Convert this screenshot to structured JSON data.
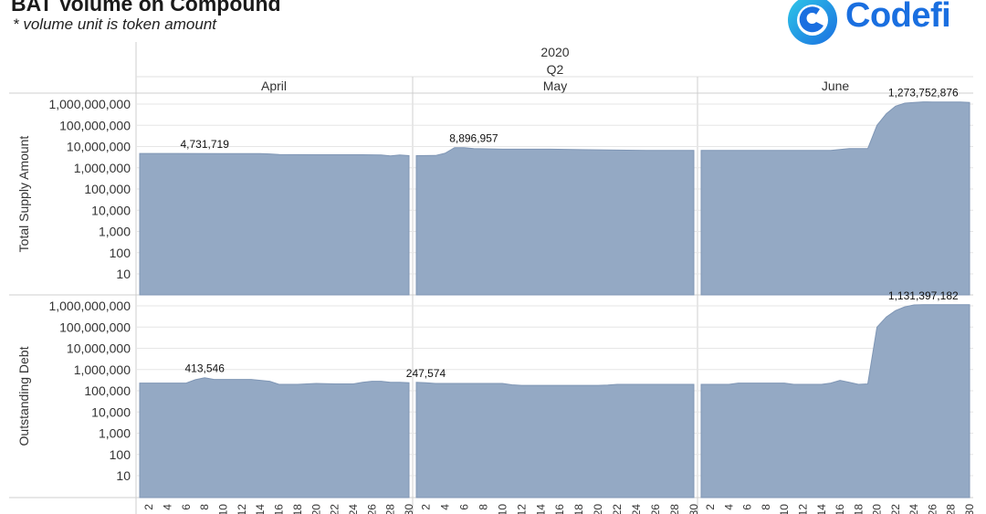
{
  "header": {
    "title": "BAT Volume on Compound",
    "subtitle": "* volume unit is token amount"
  },
  "logo": {
    "text": "Codefi",
    "icon": "codefi-swirl-icon"
  },
  "colors": {
    "area_fill": "#94a9c4",
    "area_stroke": "#7f96b5",
    "grid": "#e6e6e6",
    "divider": "#cfcfcf",
    "logo_blue": "#1a6fe0",
    "logo_cyan": "#2fc8e8"
  },
  "chart_data": {
    "type": "area",
    "header_year": "2020",
    "header_quarter": "Q2",
    "months": [
      "April",
      "May",
      "June"
    ],
    "y_scale": "log",
    "ylim": [
      1,
      1000000000
    ],
    "y_ticks": [
      "10",
      "100",
      "1,000",
      "10,000",
      "100,000",
      "1,000,000",
      "10,000,000",
      "100,000,000",
      "1,000,000,000"
    ],
    "x_ticks": [
      2,
      4,
      6,
      8,
      10,
      12,
      14,
      16,
      18,
      20,
      22,
      24,
      26,
      28,
      30
    ],
    "grid": true,
    "panels": [
      {
        "ylabel": "Total Supply Amount",
        "series": [
          {
            "month": "April",
            "x": [
              1,
              5,
              10,
              14,
              15,
              16,
              20,
              25,
              27,
              28,
              29,
              30
            ],
            "values": [
              4731719,
              4700000,
              4650000,
              4600000,
              4500000,
              4200000,
              4100000,
              4100000,
              4000000,
              3600000,
              4000000,
              3700000
            ],
            "label": "4,731,719",
            "label_day": 8
          },
          {
            "month": "May",
            "x": [
              1,
              3,
              4,
              5,
              6,
              7,
              10,
              15,
              20,
              25,
              30
            ],
            "values": [
              3700000,
              3800000,
              4800000,
              8896957,
              8800000,
              8000000,
              7500000,
              7500000,
              7000000,
              6500000,
              6500000
            ],
            "label": "8,896,957",
            "label_day": 7
          },
          {
            "month": "June",
            "x": [
              1,
              5,
              10,
              15,
              16,
              17,
              18,
              19,
              20,
              21,
              22,
              23,
              24,
              25,
              26,
              27,
              28,
              29,
              30
            ],
            "values": [
              6500000,
              6500000,
              6500000,
              6500000,
              7200000,
              8000000,
              8000000,
              8000000,
              100000000,
              350000000,
              800000000,
              1100000000,
              1200000000,
              1273752876,
              1250000000,
              1250000000,
              1250000000,
              1250000000,
              1200000000
            ],
            "label": "1,273,752,876",
            "label_day": 25
          }
        ]
      },
      {
        "ylabel": "Outstanding Debt",
        "series": [
          {
            "month": "April",
            "x": [
              1,
              3,
              5,
              6,
              7,
              8,
              9,
              10,
              13,
              14,
              15,
              16,
              17,
              18,
              20,
              22,
              24,
              25,
              26,
              27,
              28,
              29,
              30
            ],
            "values": [
              230000,
              230000,
              230000,
              230000,
              330000,
              413546,
              340000,
              340000,
              340000,
              310000,
              280000,
              200000,
              200000,
              200000,
              220000,
              210000,
              210000,
              250000,
              280000,
              280000,
              250000,
              250000,
              240000
            ],
            "label": "413,546",
            "label_day": 8
          },
          {
            "month": "May",
            "x": [
              1,
              2,
              3,
              5,
              8,
              10,
              11,
              12,
              15,
              20,
              21,
              22,
              24,
              30
            ],
            "values": [
              247574,
              240000,
              220000,
              220000,
              220000,
              220000,
              190000,
              180000,
              180000,
              180000,
              185000,
              200000,
              200000,
              200000
            ],
            "label": "247,574",
            "label_day": 2
          },
          {
            "month": "June",
            "x": [
              1,
              3,
              4,
              5,
              7,
              10,
              11,
              14,
              15,
              16,
              17,
              18,
              19,
              20,
              21,
              22,
              23,
              24,
              25,
              26,
              27,
              28,
              29,
              30
            ],
            "values": [
              200000,
              200000,
              200000,
              230000,
              230000,
              230000,
              200000,
              200000,
              230000,
              310000,
              250000,
              200000,
              210000,
              100000000,
              300000000,
              600000000,
              900000000,
              1100000000,
              1131397182,
              1131397182,
              1131397182,
              1131397182,
              1131397182,
              1131397182
            ],
            "label": "1,131,397,182",
            "label_day": 25
          }
        ]
      }
    ]
  }
}
